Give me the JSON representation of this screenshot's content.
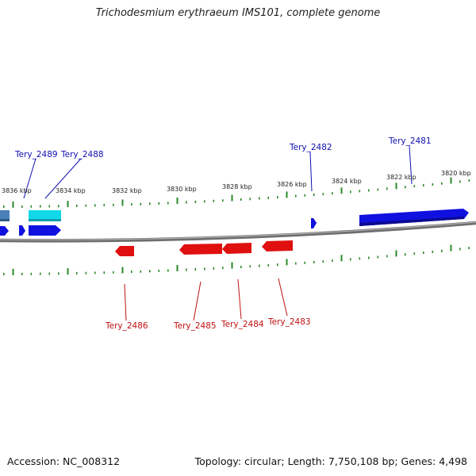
{
  "title": "Trichodesmium erythraeum IMS101, complete genome",
  "footer": {
    "accession": "Accession: NC_008312",
    "summary": "Topology: circular; Length: 7,750,108 bp; Genes: 4,498"
  },
  "colors": {
    "forward_gene": "#1010e0",
    "reverse_gene": "#e01010",
    "cyan_gene": "#10d8e8",
    "steel_gene": "#4a80b8",
    "tick": "#2a8a2a",
    "backbone": "#808080",
    "label_forward": "#1010b0",
    "label_reverse": "#c01010"
  },
  "scale_labels": [
    "3836 kbp",
    "3834 kbp",
    "3832 kbp",
    "3830 kbp",
    "3828 kbp",
    "3826 kbp",
    "3824 kbp",
    "3822 kbp",
    "3820 kbp"
  ],
  "forward_labels": [
    "Tery_2489",
    "Tery_2488",
    "Tery_2482",
    "Tery_2481"
  ],
  "reverse_labels": [
    "Tery_2486",
    "Tery_2485",
    "Tery_2484",
    "Tery_2483"
  ]
}
